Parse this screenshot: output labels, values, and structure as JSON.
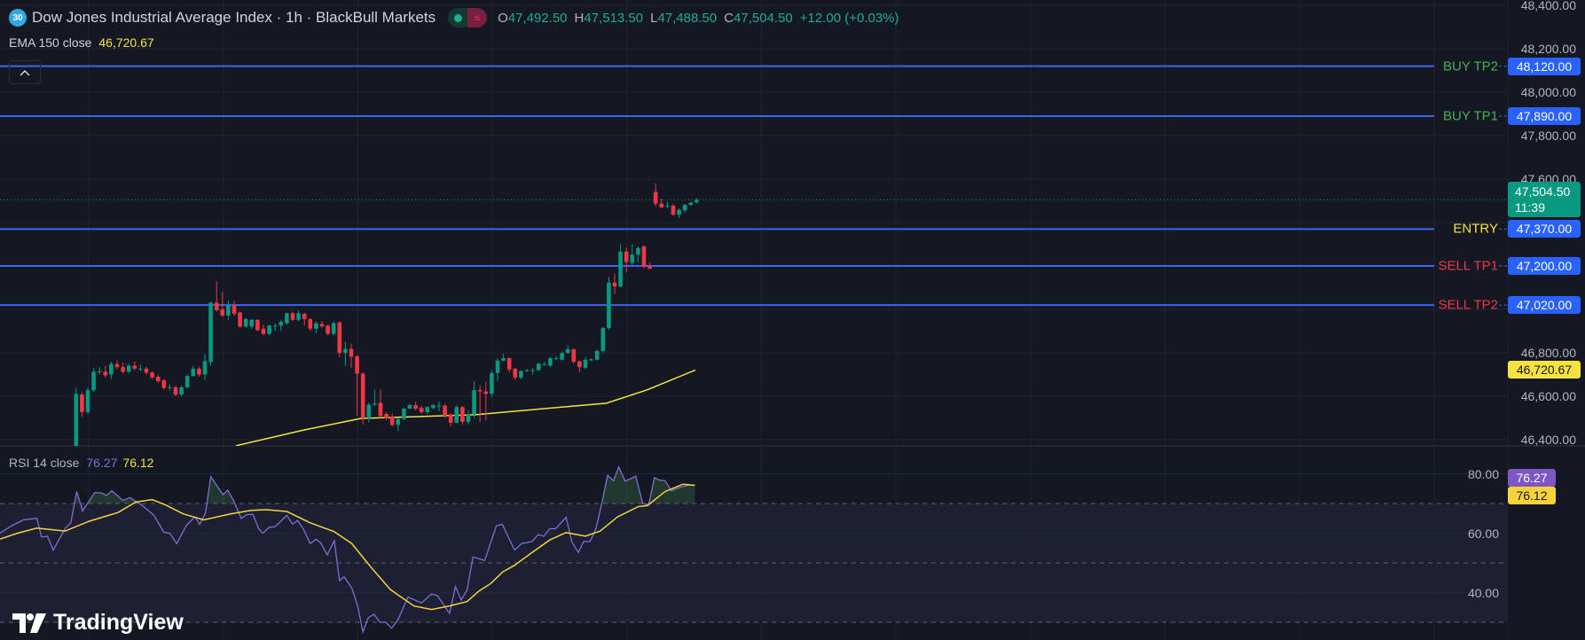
{
  "header": {
    "badge": "30",
    "title": "Dow Jones Industrial Average Index · 1h · BlackBull Markets",
    "ohlc": {
      "o_label": "O",
      "o": "47,492.50",
      "h_label": "H",
      "h": "47,513.50",
      "l_label": "L",
      "l": "47,488.50",
      "c_label": "C",
      "c": "47,504.50",
      "change": "+12.00 (+0.03%)"
    },
    "status_icons": [
      "market-open-dot-icon",
      "delayed-data-icon"
    ]
  },
  "ema_legend": {
    "label": "EMA 150 close",
    "value": "46,720.67"
  },
  "collapse_icon": "chevron-up-icon",
  "rsi_legend": {
    "label": "RSI 14 close",
    "rsi": "76.27",
    "ma": "76.12"
  },
  "price_axis": {
    "ticks": [
      {
        "price": 48400,
        "text": "48,400.00"
      },
      {
        "price": 48200,
        "text": "48,200.00"
      },
      {
        "price": 48000,
        "text": "48,000.00"
      },
      {
        "price": 47800,
        "text": "47,800.00"
      },
      {
        "price": 47600,
        "text": "47,600.00"
      },
      {
        "price": 46800,
        "text": "46,800.00"
      },
      {
        "price": 46600,
        "text": "46,600.00"
      },
      {
        "price": 46400,
        "text": "46,400.00"
      }
    ],
    "grid_prices": [
      48400,
      48200,
      48000,
      47800,
      47600,
      47400,
      47200,
      47000,
      46800,
      46600,
      46400
    ]
  },
  "rsi_axis": {
    "ticks": [
      {
        "value": 80,
        "text": "80.00"
      },
      {
        "value": 60,
        "text": "60.00"
      },
      {
        "value": 40,
        "text": "40.00"
      }
    ],
    "bands": [
      70,
      50,
      30
    ]
  },
  "levels": [
    {
      "label": "BUY TP2",
      "price": 48120,
      "price_text": "48,120.00",
      "label_color": "#4caf50"
    },
    {
      "label": "BUY TP1",
      "price": 47890,
      "price_text": "47,890.00",
      "label_color": "#4caf50"
    },
    {
      "label": "ENTRY",
      "price": 47370,
      "price_text": "47,370.00",
      "label_color": "#f5e342"
    },
    {
      "label": "SELL TP1",
      "price": 47200,
      "price_text": "47,200.00",
      "label_color": "#f23645"
    },
    {
      "label": "SELL TP2",
      "price": 47020,
      "price_text": "47,020.00",
      "label_color": "#f23645"
    }
  ],
  "current_price": {
    "price": 47504.5,
    "text": "47,504.50",
    "countdown": "11:39"
  },
  "ema_tag": {
    "price": 46720.67,
    "text": "46,720.67"
  },
  "rsi_tags": {
    "rsi": 76.27,
    "rsi_text": "76.27",
    "ma": 76.12,
    "ma_text": "76.12"
  },
  "branding": "TradingView",
  "colors": {
    "background": "#141823",
    "up": "#089981",
    "down": "#f23645",
    "level_line": "#3d63f0",
    "tag": "#2962ff",
    "ema": "#f5e342",
    "rsi": "#7e6fd0",
    "rsi_ma": "#f5d33f"
  },
  "chart_data": {
    "type": "candlestick",
    "first_candle_bar": 13,
    "candles": [
      [
        46366,
        46640,
        46340,
        46611
      ],
      [
        46608,
        46620,
        46505,
        46527
      ],
      [
        46527,
        46640,
        46520,
        46628
      ],
      [
        46628,
        46730,
        46620,
        46713
      ],
      [
        46713,
        46735,
        46700,
        46715
      ],
      [
        46713,
        46740,
        46685,
        46696
      ],
      [
        46700,
        46760,
        46680,
        46748
      ],
      [
        46748,
        46765,
        46725,
        46734
      ],
      [
        46734,
        46755,
        46705,
        46713
      ],
      [
        46713,
        46750,
        46705,
        46741
      ],
      [
        46741,
        46760,
        46720,
        46727
      ],
      [
        46727,
        46745,
        46715,
        46727
      ],
      [
        46727,
        46735,
        46700,
        46709
      ],
      [
        46709,
        46715,
        46680,
        46686
      ],
      [
        46690,
        46700,
        46660,
        46669
      ],
      [
        46673,
        46680,
        46630,
        46639
      ],
      [
        46639,
        46655,
        46625,
        46641
      ],
      [
        46641,
        46650,
        46600,
        46608
      ],
      [
        46608,
        46650,
        46600,
        46641
      ],
      [
        46641,
        46700,
        46635,
        46693
      ],
      [
        46693,
        46740,
        46690,
        46727
      ],
      [
        46727,
        46735,
        46690,
        46700
      ],
      [
        46700,
        46795,
        46675,
        46761
      ],
      [
        46758,
        47035,
        46740,
        47031
      ],
      [
        47031,
        47129,
        46990,
        46996
      ],
      [
        47000,
        47080,
        46965,
        46972
      ],
      [
        46972,
        47040,
        46950,
        47017
      ],
      [
        47017,
        47040,
        46970,
        46979
      ],
      [
        46986,
        46990,
        46915,
        46921
      ],
      [
        46921,
        46960,
        46915,
        46955
      ],
      [
        46921,
        46955,
        46910,
        46952
      ],
      [
        46952,
        46955,
        46900,
        46904
      ],
      [
        46911,
        46930,
        46880,
        46887
      ],
      [
        46887,
        46930,
        46880,
        46925
      ],
      [
        46925,
        46935,
        46900,
        46925
      ],
      [
        46925,
        46950,
        46900,
        46943
      ],
      [
        46936,
        46985,
        46930,
        46982
      ],
      [
        46982,
        46990,
        46945,
        46952
      ],
      [
        46952,
        46995,
        46945,
        46982
      ],
      [
        46979,
        46985,
        46925,
        46955
      ],
      [
        46955,
        46960,
        46900,
        46911
      ],
      [
        46911,
        46945,
        46890,
        46936
      ],
      [
        46932,
        46945,
        46915,
        46922
      ],
      [
        46925,
        46930,
        46880,
        46887
      ],
      [
        46887,
        46945,
        46880,
        46936
      ],
      [
        46940,
        46945,
        46780,
        46799
      ],
      [
        46799,
        46850,
        46740,
        46818
      ],
      [
        46818,
        46840,
        46730,
        46782
      ],
      [
        46784,
        46790,
        46510,
        46704
      ],
      [
        46704,
        46710,
        46470,
        46499
      ],
      [
        46499,
        46570,
        46480,
        46561
      ],
      [
        46561,
        46630,
        46555,
        46566
      ],
      [
        46570,
        46630,
        46500,
        46509
      ],
      [
        46519,
        46525,
        46490,
        46499
      ],
      [
        46505,
        46520,
        46460,
        46468
      ],
      [
        46468,
        46500,
        46440,
        46495
      ],
      [
        46495,
        46548,
        46490,
        46543
      ],
      [
        46543,
        46565,
        46540,
        46559
      ],
      [
        46559,
        46575,
        46535,
        46543
      ],
      [
        46546,
        46555,
        46520,
        46527
      ],
      [
        46527,
        46555,
        46515,
        46550
      ],
      [
        46546,
        46565,
        46540,
        46559
      ],
      [
        46557,
        46575,
        46530,
        46557
      ],
      [
        46557,
        46565,
        46500,
        46509
      ],
      [
        46516,
        46520,
        46460,
        46478
      ],
      [
        46478,
        46560,
        46475,
        46550
      ],
      [
        46550,
        46555,
        46470,
        46482
      ],
      [
        46482,
        46535,
        46470,
        46516
      ],
      [
        46516,
        46670,
        46500,
        46628
      ],
      [
        46628,
        46650,
        46480,
        46622
      ],
      [
        46622,
        46665,
        46490,
        46611
      ],
      [
        46611,
        46720,
        46595,
        46707
      ],
      [
        46707,
        46775,
        46670,
        46764
      ],
      [
        46764,
        46795,
        46760,
        46775
      ],
      [
        46775,
        46780,
        46710,
        46723
      ],
      [
        46727,
        46730,
        46675,
        46686
      ],
      [
        46686,
        46720,
        46680,
        46716
      ],
      [
        46716,
        46725,
        46710,
        46720
      ],
      [
        46720,
        46730,
        46700,
        46720
      ],
      [
        46720,
        46755,
        46715,
        46750
      ],
      [
        46748,
        46760,
        46740,
        46748
      ],
      [
        46741,
        46780,
        46735,
        46775
      ],
      [
        46775,
        46785,
        46768,
        46775
      ],
      [
        46768,
        46805,
        46765,
        46799
      ],
      [
        46799,
        46835,
        46795,
        46816
      ],
      [
        46816,
        46820,
        46750,
        46759
      ],
      [
        46761,
        46765,
        46710,
        46734
      ],
      [
        46731,
        46780,
        46725,
        46768
      ],
      [
        46765,
        46775,
        46762,
        46770
      ],
      [
        46768,
        46815,
        46765,
        46809
      ],
      [
        46809,
        46920,
        46800,
        46914
      ],
      [
        46914,
        47150,
        46905,
        47123
      ],
      [
        47123,
        47165,
        47070,
        47105
      ],
      [
        47105,
        47300,
        47100,
        47266
      ],
      [
        47266,
        47285,
        47170,
        47218
      ],
      [
        47214,
        47300,
        47205,
        47252
      ],
      [
        47252,
        47290,
        47215,
        47282
      ],
      [
        47290,
        47295,
        47190,
        47198
      ],
      [
        47200,
        47215,
        47185,
        47187
      ],
      [
        47541,
        47580,
        47475,
        47487
      ],
      [
        47487,
        47510,
        47465,
        47470
      ],
      [
        47477,
        47495,
        47465,
        47477
      ],
      [
        47477,
        47485,
        47430,
        47436
      ],
      [
        47436,
        47465,
        47420,
        47459
      ],
      [
        47456,
        47485,
        47445,
        47481
      ],
      [
        47481,
        47495,
        47475,
        47491
      ],
      [
        47492.5,
        47513.5,
        47488.5,
        47504.5
      ]
    ],
    "ema_150": [
      [
        40.3,
        46372
      ],
      [
        51.8,
        46444
      ],
      [
        61.7,
        46498
      ],
      [
        81.2,
        46515
      ],
      [
        103.6,
        46568
      ],
      [
        110.6,
        46630
      ],
      [
        118.8,
        46720.67
      ]
    ],
    "rsi_14": [
      [
        0,
        60
      ],
      [
        2,
        62.5
      ],
      [
        4,
        64.5
      ],
      [
        6.3,
        65
      ],
      [
        7.1,
        58.7
      ],
      [
        8.1,
        59
      ],
      [
        9.1,
        54.3
      ],
      [
        11.1,
        61.5
      ],
      [
        12.1,
        63.5
      ],
      [
        13.1,
        74
      ],
      [
        14.1,
        67.5
      ],
      [
        16.2,
        73.7
      ],
      [
        17.4,
        73.5
      ],
      [
        18.2,
        72.7
      ],
      [
        19.1,
        74.3
      ],
      [
        21,
        71
      ],
      [
        22.2,
        72
      ],
      [
        24.2,
        69.5
      ],
      [
        26.3,
        66
      ],
      [
        28,
        60.3
      ],
      [
        29,
        60
      ],
      [
        30.2,
        56.5
      ],
      [
        31.8,
        62.5
      ],
      [
        33.3,
        65.5
      ],
      [
        34.1,
        63
      ],
      [
        35.1,
        66.7
      ],
      [
        36,
        79
      ],
      [
        38.1,
        73
      ],
      [
        38.9,
        74.5
      ],
      [
        39.9,
        71
      ],
      [
        41.2,
        65
      ],
      [
        42.2,
        66.3
      ],
      [
        43.2,
        66.3
      ],
      [
        44.2,
        61.5
      ],
      [
        44.9,
        60
      ],
      [
        46,
        62
      ],
      [
        47,
        62.2
      ],
      [
        49,
        66
      ],
      [
        50,
        63
      ],
      [
        50.8,
        64.3
      ],
      [
        51.8,
        61.5
      ],
      [
        53,
        56.5
      ],
      [
        54,
        58
      ],
      [
        54.8,
        56.7
      ],
      [
        55.9,
        52.7
      ],
      [
        57.1,
        57.5
      ],
      [
        58,
        44
      ],
      [
        58.8,
        45.3
      ],
      [
        60.1,
        41.5
      ],
      [
        61.1,
        35.5
      ],
      [
        62,
        26.7
      ],
      [
        62.9,
        31.5
      ],
      [
        63.9,
        32.7
      ],
      [
        64.9,
        30
      ],
      [
        65.9,
        30
      ],
      [
        66.9,
        28
      ],
      [
        67.9,
        30.5
      ],
      [
        69.7,
        38.5
      ],
      [
        72,
        36.5
      ],
      [
        73.7,
        39.5
      ],
      [
        74.7,
        39
      ],
      [
        76.8,
        33
      ],
      [
        77.8,
        42
      ],
      [
        78.8,
        37.5
      ],
      [
        79.8,
        41
      ],
      [
        80.8,
        52
      ],
      [
        82.8,
        50.8
      ],
      [
        84.8,
        62.5
      ],
      [
        85.8,
        63
      ],
      [
        87.9,
        54.3
      ],
      [
        89.1,
        56.5
      ],
      [
        90.9,
        57.2
      ],
      [
        91.9,
        59.5
      ],
      [
        92.9,
        59
      ],
      [
        93.9,
        61.5
      ],
      [
        94.9,
        61.5
      ],
      [
        96.7,
        65.3
      ],
      [
        97.7,
        57
      ],
      [
        98.8,
        53.5
      ],
      [
        99.7,
        57.2
      ],
      [
        100.8,
        57.2
      ],
      [
        101.8,
        61.5
      ],
      [
        102.8,
        70
      ],
      [
        103.8,
        79.5
      ],
      [
        104.8,
        77.7
      ],
      [
        105.7,
        82.3
      ],
      [
        106.8,
        77.5
      ],
      [
        108.6,
        79.2
      ],
      [
        109.8,
        70
      ],
      [
        110.8,
        69.5
      ],
      [
        111.8,
        78.7
      ],
      [
        112.6,
        77.9
      ],
      [
        113.6,
        77.7
      ],
      [
        114.7,
        74.3
      ],
      [
        116.2,
        75.5
      ],
      [
        117.7,
        76.2
      ],
      [
        118.7,
        76.27
      ]
    ],
    "rsi_ma": [
      [
        0,
        58
      ],
      [
        3,
        60
      ],
      [
        6.3,
        61.7
      ],
      [
        11.1,
        60.7
      ],
      [
        15.2,
        64
      ],
      [
        20.2,
        67
      ],
      [
        23.2,
        70.5
      ],
      [
        26,
        71.3
      ],
      [
        28.3,
        69.5
      ],
      [
        31.3,
        66.5
      ],
      [
        34.8,
        64.5
      ],
      [
        39.4,
        66.5
      ],
      [
        42.9,
        67.7
      ],
      [
        45.5,
        67.9
      ],
      [
        49,
        67.3
      ],
      [
        53,
        63.5
      ],
      [
        57.1,
        60.5
      ],
      [
        60.1,
        56.5
      ],
      [
        63.6,
        48
      ],
      [
        66.7,
        41
      ],
      [
        70.7,
        35.5
      ],
      [
        73.7,
        34.3
      ],
      [
        76.8,
        35.5
      ],
      [
        79.8,
        37
      ],
      [
        81.8,
        40.5
      ],
      [
        83.8,
        43
      ],
      [
        85.9,
        47
      ],
      [
        87.9,
        49.2
      ],
      [
        90.9,
        53.5
      ],
      [
        93.9,
        57.7
      ],
      [
        96.7,
        60.2
      ],
      [
        100,
        59
      ],
      [
        102.5,
        60.7
      ],
      [
        105.5,
        65.5
      ],
      [
        109.1,
        69
      ],
      [
        110.6,
        69.3
      ],
      [
        113.6,
        74
      ],
      [
        116.7,
        76.5
      ],
      [
        118.7,
        76.12
      ]
    ]
  }
}
